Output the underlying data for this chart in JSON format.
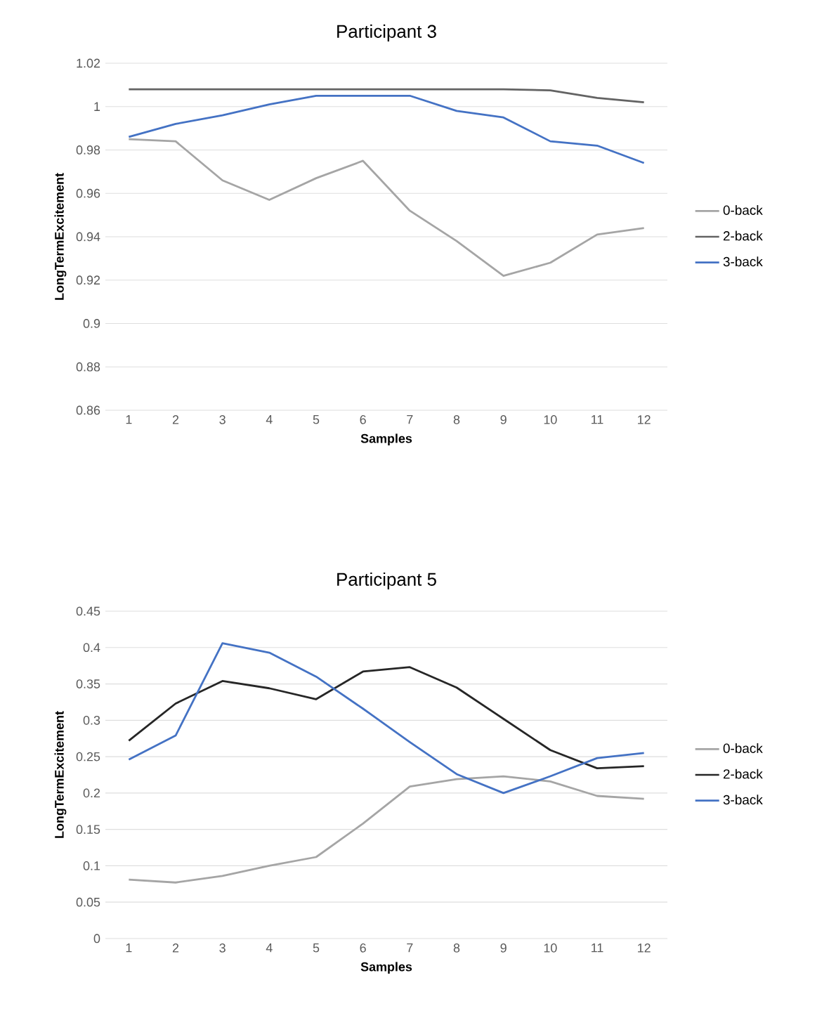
{
  "chart_data": [
    {
      "type": "line",
      "title": "Participant 3",
      "xlabel": "Samples",
      "ylabel": "LongTermExcitement",
      "categories": [
        "1",
        "2",
        "3",
        "4",
        "5",
        "6",
        "7",
        "8",
        "9",
        "10",
        "11",
        "12"
      ],
      "series": [
        {
          "name": "0-back",
          "color": "#a5a5a5",
          "values": [
            0.985,
            0.984,
            0.966,
            0.957,
            0.967,
            0.975,
            0.952,
            0.938,
            0.922,
            0.928,
            0.941,
            0.944
          ]
        },
        {
          "name": "2-back",
          "color": "#636363",
          "values": [
            1.008,
            1.008,
            1.008,
            1.008,
            1.008,
            1.008,
            1.008,
            1.008,
            1.008,
            1.0075,
            1.004,
            1.002
          ]
        },
        {
          "name": "3-back",
          "color": "#4472c4",
          "values": [
            0.986,
            0.992,
            0.996,
            1.001,
            1.005,
            1.005,
            1.005,
            0.998,
            0.995,
            0.984,
            0.982,
            0.974
          ]
        }
      ],
      "ylim": [
        0.86,
        1.02
      ],
      "yticks": [
        0.86,
        0.88,
        0.9,
        0.92,
        0.94,
        0.96,
        0.98,
        1,
        1.02
      ],
      "grid": "y",
      "legend": "right"
    },
    {
      "type": "line",
      "title": "Participant 5",
      "xlabel": "Samples",
      "ylabel": "LongTermExcitement",
      "categories": [
        "1",
        "2",
        "3",
        "4",
        "5",
        "6",
        "7",
        "8",
        "9",
        "10",
        "11",
        "12"
      ],
      "series": [
        {
          "name": "0-back",
          "color": "#a5a5a5",
          "values": [
            0.081,
            0.077,
            0.086,
            0.1,
            0.112,
            0.158,
            0.209,
            0.219,
            0.223,
            0.216,
            0.196,
            0.192
          ]
        },
        {
          "name": "2-back",
          "color": "#262626",
          "values": [
            0.272,
            0.323,
            0.354,
            0.344,
            0.329,
            0.367,
            0.373,
            0.345,
            0.302,
            0.259,
            0.234,
            0.237
          ]
        },
        {
          "name": "3-back",
          "color": "#4472c4",
          "values": [
            0.246,
            0.279,
            0.406,
            0.393,
            0.36,
            0.316,
            0.27,
            0.226,
            0.2,
            0.223,
            0.248,
            0.255
          ]
        }
      ],
      "ylim": [
        0,
        0.45
      ],
      "yticks": [
        0,
        0.05,
        0.1,
        0.15,
        0.2,
        0.25,
        0.3,
        0.35,
        0.4,
        0.45
      ],
      "grid": "y",
      "legend": "right"
    }
  ]
}
